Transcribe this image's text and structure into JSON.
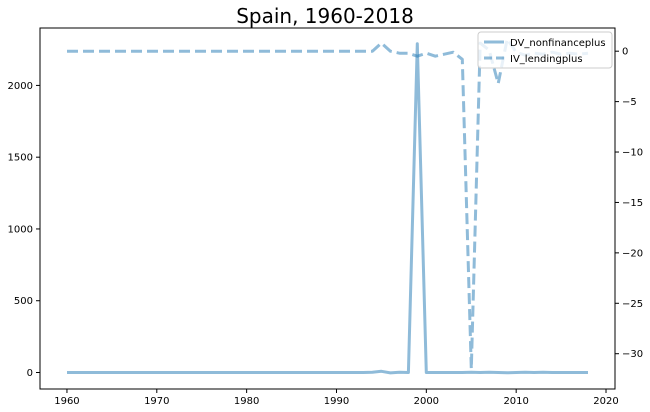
{
  "chart_data": {
    "type": "line",
    "title": "Spain, 1960-2018",
    "xlabel": "",
    "ylabel_left": "",
    "ylabel_right": "",
    "xlim": [
      1957,
      2021
    ],
    "ylim_left": [
      -115,
      2400
    ],
    "ylim_right": [
      -33.5,
      2.3
    ],
    "xticks": [
      "1960",
      "1970",
      "1980",
      "1990",
      "2000",
      "2010",
      "2020"
    ],
    "yticks_left": [
      "0",
      "500",
      "1000",
      "1500",
      "2000"
    ],
    "yticks_right": [
      "0",
      "−5",
      "−10",
      "−15",
      "−20",
      "−25",
      "−30"
    ],
    "grid": false,
    "legend_position": "top-right",
    "series": [
      {
        "name": "DV_nonfinanceplus",
        "axis": "left",
        "style": "solid",
        "color": "#1f77b4",
        "points": [
          [
            1960,
            0
          ],
          [
            1965,
            0
          ],
          [
            1970,
            0
          ],
          [
            1975,
            0
          ],
          [
            1980,
            0
          ],
          [
            1985,
            0
          ],
          [
            1990,
            0
          ],
          [
            1993,
            0
          ],
          [
            1994,
            2
          ],
          [
            1995,
            8
          ],
          [
            1996,
            -3
          ],
          [
            1997,
            2
          ],
          [
            1998,
            0
          ],
          [
            1999,
            2290
          ],
          [
            2000,
            0
          ],
          [
            2001,
            0
          ],
          [
            2002,
            0
          ],
          [
            2003,
            0
          ],
          [
            2004,
            0
          ],
          [
            2005,
            2
          ],
          [
            2006,
            0
          ],
          [
            2007,
            2
          ],
          [
            2008,
            0
          ],
          [
            2009,
            -2
          ],
          [
            2010,
            0
          ],
          [
            2011,
            2
          ],
          [
            2012,
            0
          ],
          [
            2013,
            2
          ],
          [
            2014,
            0
          ],
          [
            2015,
            0
          ],
          [
            2016,
            0
          ],
          [
            2017,
            0
          ],
          [
            2018,
            0
          ]
        ]
      },
      {
        "name": "IV_lendingplus",
        "axis": "right",
        "style": "dashed",
        "color": "#1f77b4",
        "points": [
          [
            1960,
            0
          ],
          [
            1965,
            0
          ],
          [
            1970,
            0
          ],
          [
            1975,
            0
          ],
          [
            1980,
            0
          ],
          [
            1985,
            0
          ],
          [
            1990,
            0
          ],
          [
            1993,
            0
          ],
          [
            1994,
            0
          ],
          [
            1995,
            0.8
          ],
          [
            1996,
            0
          ],
          [
            1997,
            -0.2
          ],
          [
            1998,
            -0.2
          ],
          [
            1999,
            -0.5
          ],
          [
            2000,
            -0.2
          ],
          [
            2001,
            -0.5
          ],
          [
            2002,
            -0.3
          ],
          [
            2003,
            -0.1
          ],
          [
            2004,
            -0.8
          ],
          [
            2005,
            -31.5
          ],
          [
            2006,
            0.8
          ],
          [
            2007,
            0.1
          ],
          [
            2008,
            -3.2
          ],
          [
            2009,
            1.2
          ],
          [
            2010,
            -0.1
          ],
          [
            2011,
            -0.4
          ],
          [
            2012,
            -0.2
          ],
          [
            2013,
            -0.3
          ],
          [
            2014,
            -0.1
          ],
          [
            2015,
            -0.3
          ],
          [
            2016,
            -0.2
          ],
          [
            2017,
            -0.3
          ],
          [
            2018,
            -0.2
          ]
        ]
      }
    ]
  }
}
